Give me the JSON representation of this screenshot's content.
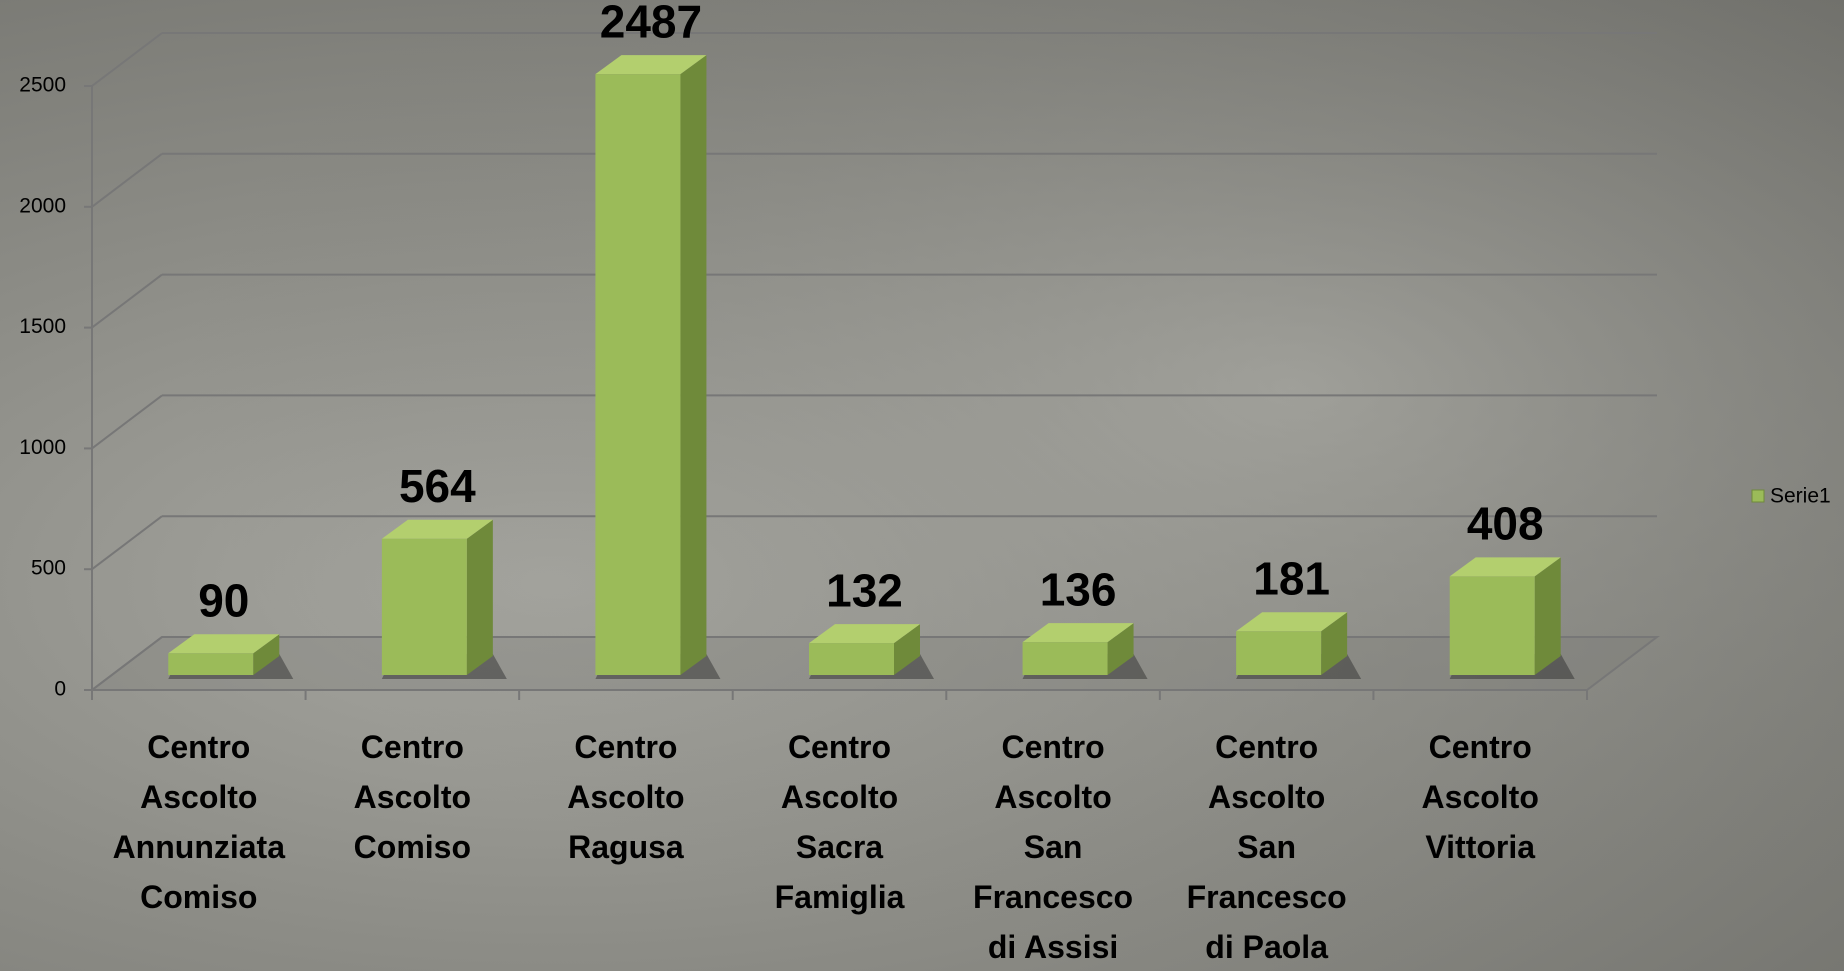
{
  "chart_data": {
    "type": "bar3d",
    "categories": [
      "Centro Ascolto Annunziata Comiso",
      "Centro Ascolto Comiso",
      "Centro Ascolto Ragusa",
      "Centro Ascolto Sacra Famiglia",
      "Centro Ascolto San Francesco di Assisi",
      "Centro Ascolto San Francesco di Paola",
      "Centro Ascolto Vittoria"
    ],
    "series": [
      {
        "name": "Serie1",
        "color": "#9bbb59",
        "values": [
          90,
          564,
          2487,
          132,
          136,
          181,
          408
        ]
      }
    ],
    "ylim": [
      0,
      2500
    ],
    "yticks": [
      0,
      500,
      1000,
      1500,
      2000,
      2500
    ],
    "grid": true,
    "legend": "right"
  }
}
